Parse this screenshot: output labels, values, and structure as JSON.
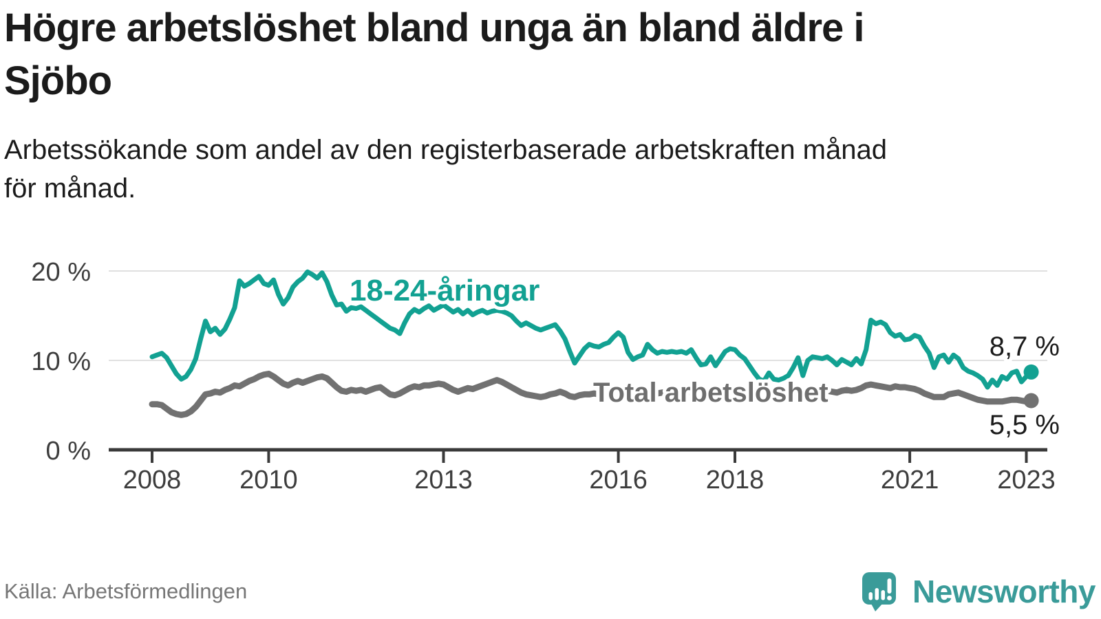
{
  "header": {
    "title_line1": "Högre arbetslöshet bland unga än bland äldre i",
    "title_line2": "Sjöbo",
    "subtitle_line1": "Arbetssökande som andel av den registerbaserade arbetskraften månad",
    "subtitle_line2": "för månad."
  },
  "footer": {
    "source": "Källa: Arbetsförmedlingen",
    "brand_name": "Newsworthy",
    "brand_color": "#3a9b99"
  },
  "colors": {
    "grid": "#e0e0e0",
    "axis": "#3a3a3a",
    "axis_text": "#3d3d3d"
  },
  "chart_data": {
    "type": "line",
    "title": "Högre arbetslöshet bland unga än bland äldre i Sjöbo",
    "subtitle": "Arbetssökande som andel av den registerbaserade arbetskraften månad för månad.",
    "x_unit": "month",
    "x_start": "2008-01",
    "x_end": "2023-02",
    "x_ticks": [
      2008,
      2010,
      2013,
      2016,
      2018,
      2021,
      2023
    ],
    "y_ticks": [
      {
        "label": "0 %",
        "value": 0
      },
      {
        "label": "10 %",
        "value": 10
      },
      {
        "label": "20 %",
        "value": 20
      }
    ],
    "ylim": [
      0,
      21.5
    ],
    "grid": "horizontal",
    "legend": "inline-labels",
    "series": [
      {
        "name": "18-24-åringar",
        "color": "#12a192",
        "end_label": "8,7 %",
        "end_value": 8.7,
        "values": [
          10.4,
          10.6,
          10.8,
          10.3,
          9.4,
          8.5,
          7.9,
          8.2,
          9.0,
          10.2,
          12.4,
          14.4,
          13.2,
          13.6,
          12.9,
          13.5,
          14.6,
          15.9,
          18.9,
          18.3,
          18.6,
          19.0,
          19.4,
          18.6,
          18.4,
          19.0,
          17.4,
          16.3,
          17.0,
          18.2,
          18.8,
          19.2,
          19.9,
          19.6,
          19.2,
          19.8,
          18.8,
          17.3,
          16.2,
          16.3,
          15.5,
          15.9,
          15.8,
          16.0,
          15.6,
          15.2,
          14.8,
          14.4,
          14.0,
          13.6,
          13.4,
          13.0,
          14.2,
          15.2,
          15.7,
          15.4,
          15.8,
          16.1,
          15.6,
          15.9,
          16.2,
          15.8,
          15.4,
          15.7,
          15.2,
          15.6,
          15.1,
          15.4,
          15.6,
          15.3,
          15.5,
          15.6,
          15.5,
          15.3,
          15.0,
          14.4,
          13.9,
          14.2,
          13.9,
          13.6,
          13.4,
          13.6,
          13.8,
          14.0,
          13.3,
          12.4,
          11.0,
          9.7,
          10.5,
          11.3,
          11.8,
          11.6,
          11.5,
          11.8,
          12.0,
          12.6,
          13.1,
          12.6,
          10.9,
          10.1,
          10.4,
          10.6,
          11.8,
          11.2,
          10.8,
          11.0,
          10.9,
          11.0,
          10.9,
          11.0,
          10.8,
          11.2,
          10.3,
          9.5,
          9.6,
          10.4,
          9.4,
          10.2,
          11.0,
          11.3,
          11.2,
          10.6,
          10.2,
          9.4,
          8.6,
          7.9,
          7.7,
          8.6,
          7.9,
          7.8,
          8.0,
          8.3,
          9.2,
          10.3,
          8.3,
          10.0,
          10.4,
          10.3,
          10.2,
          10.4,
          10.0,
          9.5,
          10.1,
          9.8,
          9.5,
          10.2,
          9.6,
          11.2,
          14.5,
          14.1,
          14.3,
          14.0,
          13.1,
          12.7,
          12.9,
          12.3,
          12.4,
          12.8,
          12.6,
          11.6,
          10.8,
          9.2,
          10.4,
          10.6,
          9.8,
          10.6,
          10.2,
          9.2,
          8.8,
          8.6,
          8.3,
          7.9,
          7.0,
          7.8,
          7.2,
          8.2,
          7.9,
          8.6,
          8.8,
          7.6,
          8.2,
          8.7
        ]
      },
      {
        "name": "Total arbetslöshet",
        "color": "#717171",
        "end_label": "5,5 %",
        "end_value": 5.5,
        "values": [
          5.1,
          5.1,
          5.0,
          4.6,
          4.2,
          4.0,
          3.9,
          4.0,
          4.3,
          4.8,
          5.5,
          6.2,
          6.3,
          6.5,
          6.4,
          6.7,
          6.9,
          7.2,
          7.1,
          7.4,
          7.7,
          7.9,
          8.2,
          8.4,
          8.5,
          8.2,
          7.8,
          7.4,
          7.2,
          7.5,
          7.7,
          7.5,
          7.7,
          7.9,
          8.1,
          8.2,
          8.0,
          7.5,
          7.0,
          6.6,
          6.5,
          6.7,
          6.6,
          6.7,
          6.5,
          6.7,
          6.9,
          7.0,
          6.6,
          6.2,
          6.1,
          6.3,
          6.6,
          6.9,
          7.1,
          7.0,
          7.2,
          7.2,
          7.3,
          7.4,
          7.3,
          7.0,
          6.7,
          6.5,
          6.7,
          6.9,
          6.8,
          7.0,
          7.2,
          7.4,
          7.6,
          7.8,
          7.6,
          7.3,
          7.0,
          6.7,
          6.4,
          6.2,
          6.1,
          6.0,
          5.9,
          6.0,
          6.2,
          6.3,
          6.5,
          6.3,
          6.0,
          5.9,
          6.1,
          6.2,
          6.2,
          6.3,
          6.2,
          6.4,
          6.5,
          6.6,
          6.6,
          6.5,
          6.3,
          6.2,
          6.3,
          6.4,
          6.5,
          6.4,
          6.3,
          6.4,
          6.5,
          6.6,
          6.6,
          6.7,
          6.5,
          6.4,
          6.3,
          6.2,
          6.3,
          6.4,
          6.3,
          6.4,
          6.6,
          6.7,
          6.7,
          6.6,
          6.4,
          6.2,
          6.0,
          5.9,
          6.0,
          6.1,
          6.0,
          6.1,
          6.3,
          6.4,
          6.5,
          6.6,
          6.5,
          6.4,
          6.5,
          6.6,
          6.5,
          6.6,
          6.5,
          6.4,
          6.6,
          6.7,
          6.6,
          6.7,
          6.9,
          7.2,
          7.3,
          7.2,
          7.1,
          7.0,
          6.9,
          7.1,
          7.0,
          7.0,
          6.9,
          6.8,
          6.6,
          6.3,
          6.1,
          5.9,
          5.9,
          5.9,
          6.2,
          6.3,
          6.4,
          6.2,
          6.0,
          5.8,
          5.6,
          5.5,
          5.4,
          5.4,
          5.4,
          5.4,
          5.5,
          5.6,
          5.6,
          5.5,
          5.4,
          5.5
        ]
      }
    ]
  }
}
